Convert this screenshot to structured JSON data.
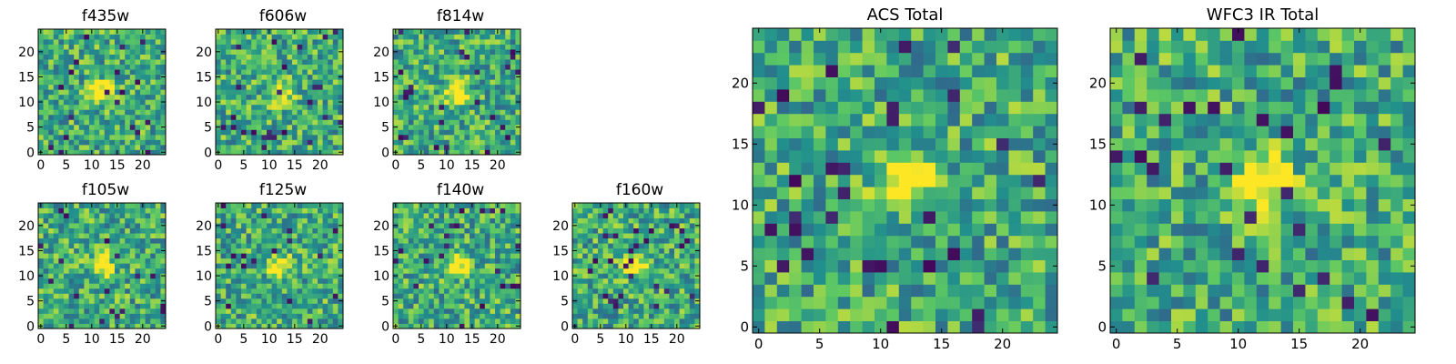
{
  "chart_data": [
    {
      "type": "heatmap",
      "title": "f435w",
      "xlim": [
        0,
        24
      ],
      "ylim": [
        0,
        24
      ],
      "xticks": [
        0,
        5,
        10,
        15,
        20
      ],
      "yticks": [
        0,
        5,
        10,
        15,
        20
      ],
      "hotspot": [
        12,
        12
      ]
    },
    {
      "type": "heatmap",
      "title": "f606w",
      "xlim": [
        0,
        24
      ],
      "ylim": [
        0,
        24
      ],
      "xticks": [
        0,
        5,
        10,
        15,
        20
      ],
      "yticks": [
        0,
        5,
        10,
        15,
        20
      ],
      "hotspot": [
        12,
        12
      ]
    },
    {
      "type": "heatmap",
      "title": "f814w",
      "xlim": [
        0,
        24
      ],
      "ylim": [
        0,
        24
      ],
      "xticks": [
        0,
        5,
        10,
        15,
        20
      ],
      "yticks": [
        0,
        5,
        10,
        15,
        20
      ],
      "hotspot": [
        12,
        12
      ]
    },
    {
      "type": "heatmap",
      "title": "f105w",
      "xlim": [
        0,
        24
      ],
      "ylim": [
        0,
        24
      ],
      "xticks": [
        0,
        5,
        10,
        15,
        20
      ],
      "yticks": [
        0,
        5,
        10,
        15,
        20
      ],
      "hotspot": [
        12,
        12
      ]
    },
    {
      "type": "heatmap",
      "title": "f125w",
      "xlim": [
        0,
        24
      ],
      "ylim": [
        0,
        24
      ],
      "xticks": [
        0,
        5,
        10,
        15,
        20
      ],
      "yticks": [
        0,
        5,
        10,
        15,
        20
      ],
      "hotspot": [
        12,
        12
      ]
    },
    {
      "type": "heatmap",
      "title": "f140w",
      "xlim": [
        0,
        24
      ],
      "ylim": [
        0,
        24
      ],
      "xticks": [
        0,
        5,
        10,
        15,
        20
      ],
      "yticks": [
        0,
        5,
        10,
        15,
        20
      ],
      "hotspot": [
        12,
        12
      ]
    },
    {
      "type": "heatmap",
      "title": "f160w",
      "xlim": [
        0,
        24
      ],
      "ylim": [
        0,
        24
      ],
      "xticks": [
        0,
        5,
        10,
        15,
        20
      ],
      "yticks": [
        0,
        5,
        10,
        15,
        20
      ],
      "hotspot": [
        12,
        12
      ]
    },
    {
      "type": "heatmap",
      "title": "ACS Total",
      "xlim": [
        0,
        24
      ],
      "ylim": [
        0,
        24
      ],
      "xticks": [
        0,
        5,
        10,
        15,
        20
      ],
      "yticks": [
        0,
        5,
        10,
        15,
        20
      ],
      "hotspot": [
        12,
        12
      ]
    },
    {
      "type": "heatmap",
      "title": "WFC3 IR Total",
      "xlim": [
        0,
        24
      ],
      "ylim": [
        0,
        24
      ],
      "xticks": [
        0,
        5,
        10,
        15,
        20
      ],
      "yticks": [
        0,
        5,
        10,
        15,
        20
      ],
      "hotspot": [
        12,
        12
      ]
    }
  ],
  "colormap": [
    "#440154",
    "#3b528b",
    "#21908d",
    "#5dc863",
    "#fde725"
  ]
}
